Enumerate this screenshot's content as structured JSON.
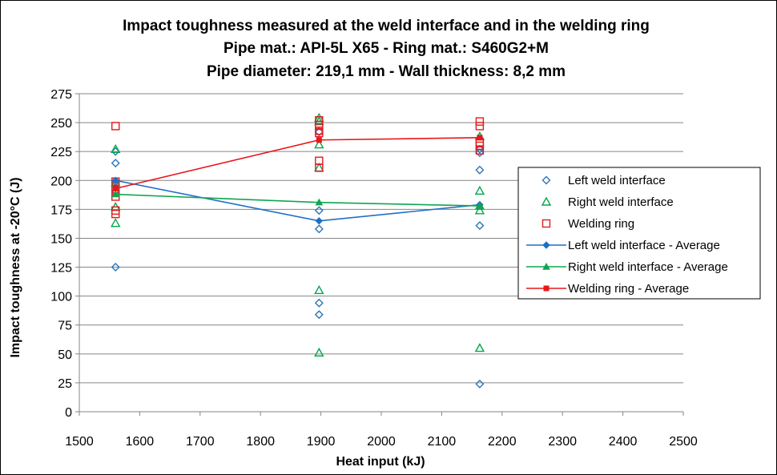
{
  "chart_data": {
    "type": "scatter",
    "title_lines": [
      "Impact toughness measured at the weld interface and in the welding ring",
      "Pipe mat.: API-5L X65 - Ring mat.: S460G2+M",
      "Pipe diameter: 219,1 mm - Wall thickness: 8,2 mm"
    ],
    "xlabel": "Heat input (kJ)",
    "ylabel": "Impact toughness at -20°C (J)",
    "xlim": [
      1500,
      2500
    ],
    "ylim": [
      0,
      275
    ],
    "x_ticks": [
      "1500",
      "1600",
      "1700",
      "1800",
      "1900",
      "2000",
      "2100",
      "2200",
      "2300",
      "2400",
      "2500"
    ],
    "y_ticks": [
      "0",
      "25",
      "50",
      "75",
      "100",
      "125",
      "150",
      "175",
      "200",
      "225",
      "250",
      "275"
    ],
    "grid": "horizontal",
    "legend_position": "right",
    "series": [
      {
        "name": "Left weld interface",
        "kind": "scatter",
        "marker": "diamond-open",
        "color": "#2e75b6",
        "points": [
          [
            1560,
            125
          ],
          [
            1560,
            191
          ],
          [
            1560,
            199
          ],
          [
            1560,
            215
          ],
          [
            1560,
            225
          ],
          [
            1897,
            84
          ],
          [
            1897,
            94
          ],
          [
            1897,
            158
          ],
          [
            1897,
            174
          ],
          [
            1897,
            242
          ],
          [
            2163,
            24
          ],
          [
            2163,
            161
          ],
          [
            2163,
            209
          ],
          [
            2163,
            224
          ],
          [
            2163,
            227
          ]
        ]
      },
      {
        "name": "Right weld interface",
        "kind": "scatter",
        "marker": "triangle-open",
        "color": "#00a84f",
        "points": [
          [
            1560,
            163
          ],
          [
            1560,
            177
          ],
          [
            1560,
            198
          ],
          [
            1560,
            227
          ],
          [
            1897,
            51
          ],
          [
            1897,
            105
          ],
          [
            1897,
            211
          ],
          [
            1897,
            231
          ],
          [
            1897,
            251
          ],
          [
            1897,
            254
          ],
          [
            2163,
            55
          ],
          [
            2163,
            174
          ],
          [
            2163,
            178
          ],
          [
            2163,
            191
          ],
          [
            2163,
            238
          ]
        ]
      },
      {
        "name": "Welding ring",
        "kind": "scatter",
        "marker": "square-open",
        "color": "#e31a1c",
        "points": [
          [
            1560,
            171
          ],
          [
            1560,
            174
          ],
          [
            1560,
            186
          ],
          [
            1560,
            191
          ],
          [
            1560,
            199
          ],
          [
            1560,
            247
          ],
          [
            1897,
            211
          ],
          [
            1897,
            217
          ],
          [
            1897,
            241
          ],
          [
            1897,
            243
          ],
          [
            1897,
            248
          ],
          [
            1897,
            252
          ],
          [
            2163,
            226
          ],
          [
            2163,
            230
          ],
          [
            2163,
            233
          ],
          [
            2163,
            247
          ],
          [
            2163,
            251
          ]
        ]
      },
      {
        "name": "Left weld interface - Average",
        "kind": "line",
        "marker": "diamond-filled",
        "color": "#1f6fc5",
        "points": [
          [
            1560,
            200
          ],
          [
            1897,
            165
          ],
          [
            2163,
            179
          ]
        ]
      },
      {
        "name": "Right weld interface - Average",
        "kind": "line",
        "marker": "triangle-filled",
        "color": "#10a650",
        "points": [
          [
            1560,
            188
          ],
          [
            1897,
            181
          ],
          [
            2163,
            178
          ]
        ]
      },
      {
        "name": "Welding ring - Average",
        "kind": "line",
        "marker": "square-filled",
        "color": "#e8171b",
        "points": [
          [
            1560,
            193
          ],
          [
            1897,
            235
          ],
          [
            2163,
            237
          ]
        ]
      }
    ]
  }
}
